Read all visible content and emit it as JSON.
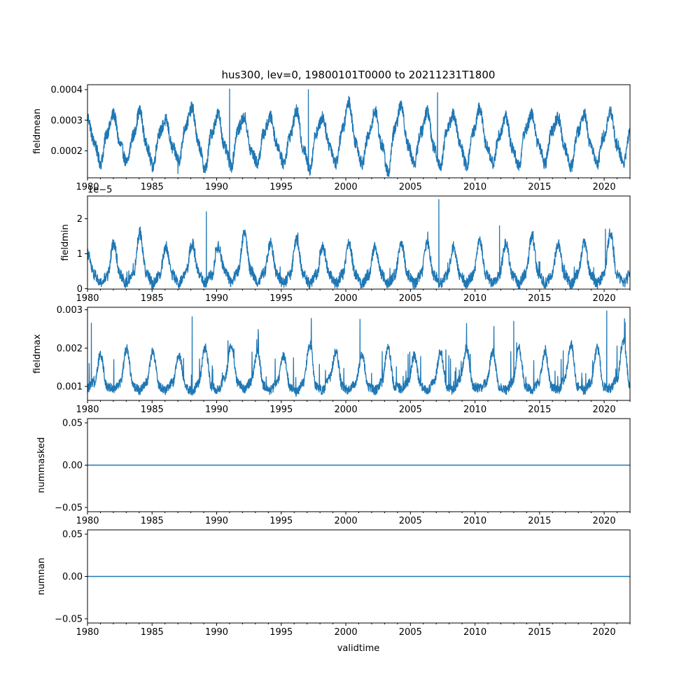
{
  "chart_data": {
    "title": "hus300, lev=0, 19800101T0000 to 20211231T1800",
    "type": "line",
    "line_color": "#1f77b4",
    "xlabel": "validtime",
    "x_range": [
      1980,
      2022
    ],
    "x_ticks": [
      "1980",
      "1985",
      "1990",
      "1995",
      "2000",
      "2005",
      "2010",
      "2015",
      "2020"
    ],
    "panels": [
      {
        "name": "fieldmean",
        "ylabel": "fieldmean",
        "type": "line",
        "ylim": [
          0.000112,
          0.000416
        ],
        "y_ticks": [
          0.0002,
          0.0003,
          0.0004
        ],
        "y_tick_labels": [
          "0.0002",
          "0.0003",
          "0.0004"
        ],
        "offset_label": "",
        "series": {
          "x_start": 1980,
          "x_end": 2022,
          "values": [
            0.00031,
            0.00023,
            0.00016,
            0.00026,
            0.00032,
            0.00022,
            0.00016,
            0.00025,
            0.00033,
            0.00022,
            0.00015,
            0.00026,
            0.0003,
            0.00021,
            0.00017,
            0.00028,
            0.00034,
            0.00022,
            0.00014,
            0.00026,
            0.00032,
            0.00021,
            0.00015,
            0.00027,
            0.00031,
            0.0002,
            0.00016,
            0.00026,
            0.00031,
            0.00022,
            0.00016,
            0.00025,
            0.00033,
            0.00021,
            0.00014,
            0.00026,
            0.00031,
            0.00022,
            0.00016,
            0.00027,
            0.00036,
            0.00023,
            0.00016,
            0.00025,
            0.00033,
            0.00022,
            0.00013,
            0.00027,
            0.00035,
            0.00022,
            0.00016,
            0.00026,
            0.00033,
            0.00021,
            0.00015,
            0.00027,
            0.00032,
            0.00022,
            0.00015,
            0.00026,
            0.00034,
            0.00022,
            0.00016,
            0.00025,
            0.00031,
            0.00021,
            0.00015,
            0.00027,
            0.00032,
            0.00022,
            0.00016,
            0.00026,
            0.00031,
            0.00021,
            0.00015,
            0.00026,
            0.00032,
            0.00022,
            0.00016,
            0.00025,
            0.00033,
            0.00022,
            0.00016,
            0.00026
          ],
          "peaks": [
            {
              "x": 1991.0,
              "y": 0.000402
            },
            {
              "x": 1997.1,
              "y": 0.0004
            },
            {
              "x": 2007.1,
              "y": 0.00039
            },
            {
              "x": 1987.0,
              "y": 0.000126
            }
          ]
        }
      },
      {
        "name": "fieldmin",
        "ylabel": "fieldmin",
        "type": "line",
        "ylim": [
          -1.3e-07,
          2.65e-05
        ],
        "y_ticks": [
          0,
          1e-05,
          2e-05
        ],
        "y_tick_labels": [
          "0",
          "1",
          "2"
        ],
        "offset_label": "1e−5",
        "series": {
          "x_start": 1980,
          "x_end": 2022,
          "values": [
            1e-05,
            4e-06,
            1.5e-06,
            3.5e-06,
            1.3e-05,
            4e-06,
            1.5e-06,
            4e-06,
            1.6e-05,
            4.5e-06,
            1.5e-06,
            4e-06,
            1.2e-05,
            4e-06,
            1.5e-06,
            4e-06,
            1.3e-05,
            4.5e-06,
            1.5e-06,
            4e-06,
            1.2e-05,
            5e-06,
            2e-06,
            5e-06,
            1.6e-05,
            5e-06,
            2e-06,
            4.5e-06,
            1.3e-05,
            4e-06,
            1.5e-06,
            4e-06,
            1.4e-05,
            4e-06,
            1.5e-06,
            4e-06,
            1.2e-05,
            4e-06,
            1.5e-06,
            4e-06,
            1.3e-05,
            4e-06,
            1.5e-06,
            4e-06,
            1.2e-05,
            4e-06,
            1.5e-06,
            4e-06,
            1.3e-05,
            4e-06,
            1.5e-06,
            4e-06,
            1.3e-05,
            4e-06,
            1.5e-06,
            4e-06,
            1.2e-05,
            4e-06,
            1.5e-06,
            4e-06,
            1.4e-05,
            4e-06,
            1.5e-06,
            4e-06,
            1.3e-05,
            4e-06,
            1.5e-06,
            4e-06,
            1.5e-05,
            4e-06,
            1.5e-06,
            4e-06,
            1.3e-05,
            4e-06,
            1.5e-06,
            4e-06,
            1.3e-05,
            4e-06,
            1.5e-06,
            4e-06,
            1.6e-05,
            4e-06,
            1.5e-06,
            4e-06
          ],
          "peaks": [
            {
              "x": 1989.2,
              "y": 2.2e-05
            },
            {
              "x": 2007.2,
              "y": 2.55e-05
            },
            {
              "x": 2011.9,
              "y": 1.8e-05
            },
            {
              "x": 2020.1,
              "y": 1.7e-05
            }
          ]
        }
      },
      {
        "name": "fieldmax",
        "ylabel": "fieldmax",
        "type": "line",
        "ylim": [
          0.000635,
          0.003065
        ],
        "y_ticks": [
          0.001,
          0.002,
          0.003
        ],
        "y_tick_labels": [
          "0.001",
          "0.002",
          "0.003"
        ],
        "offset_label": "",
        "series": {
          "x_start": 1980,
          "x_end": 2022,
          "values": [
            0.00095,
            0.0011,
            0.0018,
            0.001,
            0.00095,
            0.0011,
            0.002,
            0.001,
            0.0009,
            0.0011,
            0.0019,
            0.001,
            0.0009,
            0.0011,
            0.0018,
            0.001,
            0.00085,
            0.0011,
            0.002,
            0.001,
            0.0009,
            0.0012,
            0.0021,
            0.0011,
            0.00095,
            0.0011,
            0.0019,
            0.001,
            0.0009,
            0.0011,
            0.0018,
            0.001,
            0.00085,
            0.0011,
            0.0021,
            0.001,
            0.0009,
            0.0012,
            0.0019,
            0.001,
            0.0009,
            0.0011,
            0.0018,
            0.001,
            0.0009,
            0.0011,
            0.002,
            0.001,
            0.00095,
            0.0011,
            0.0018,
            0.001,
            0.0009,
            0.0011,
            0.0019,
            0.001,
            0.0009,
            0.0012,
            0.002,
            0.001,
            0.00095,
            0.0011,
            0.0019,
            0.001,
            0.0009,
            0.0011,
            0.002,
            0.001,
            0.0009,
            0.0011,
            0.0019,
            0.001,
            0.0009,
            0.0012,
            0.0021,
            0.001,
            0.0009,
            0.0011,
            0.002,
            0.001,
            0.00095,
            0.0012,
            0.0022,
            0.001
          ],
          "peaks": [
            {
              "x": 1980.3,
              "y": 0.00265
            },
            {
              "x": 1988.1,
              "y": 0.00282
            },
            {
              "x": 2020.2,
              "y": 0.00297
            },
            {
              "x": 2001.1,
              "y": 0.00275
            },
            {
              "x": 2013.0,
              "y": 0.0027
            }
          ]
        }
      },
      {
        "name": "nummasked",
        "ylabel": "nummasked",
        "type": "line",
        "ylim": [
          -0.055,
          0.055
        ],
        "y_ticks": [
          -0.05,
          0.0,
          0.05
        ],
        "y_tick_labels": [
          "−0.05",
          "0.00",
          "0.05"
        ],
        "offset_label": "",
        "series": {
          "x_start": 1980,
          "x_end": 2022,
          "values": [
            0,
            0
          ],
          "peaks": []
        }
      },
      {
        "name": "numnan",
        "ylabel": "numnan",
        "type": "line",
        "ylim": [
          -0.055,
          0.055
        ],
        "y_ticks": [
          -0.05,
          0.0,
          0.05
        ],
        "y_tick_labels": [
          "−0.05",
          "0.00",
          "0.05"
        ],
        "offset_label": "",
        "series": {
          "x_start": 1980,
          "x_end": 2022,
          "values": [
            0,
            0
          ],
          "peaks": []
        }
      }
    ]
  }
}
